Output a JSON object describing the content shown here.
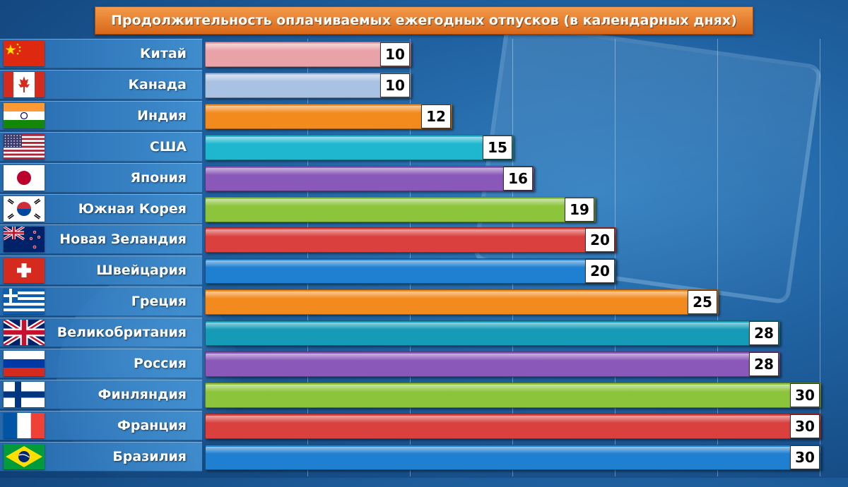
{
  "chart_data": {
    "type": "bar",
    "orientation": "horizontal",
    "title": "Продолжительность оплачиваемых ежегодных отпусков (в календарных днях)",
    "xlim": [
      0,
      30
    ],
    "grid": true,
    "categories": [
      "Китай",
      "Канада",
      "Индия",
      "США",
      "Япония",
      "Южная Корея",
      "Новая Зеландия",
      "Швейцария",
      "Греция",
      "Великобритания",
      "Россия",
      "Финляндия",
      "Франция",
      "Бразилия"
    ],
    "values": [
      10,
      10,
      12,
      15,
      16,
      19,
      20,
      20,
      25,
      28,
      28,
      30,
      30,
      30
    ],
    "value_labels": [
      "10",
      "10",
      "12",
      "15",
      "16",
      "19",
      "20",
      "20",
      "25",
      "28",
      "28",
      "30",
      "30",
      "30"
    ],
    "bar_colors": [
      "#e9a3a8",
      "#a9c1e3",
      "#f28a1e",
      "#1fb7cf",
      "#8a58b8",
      "#8cc43c",
      "#d9403e",
      "#1f7fd0",
      "#f28a1e",
      "#159ab7",
      "#8a58b8",
      "#8cc43c",
      "#d9403e",
      "#1f7fd0"
    ],
    "flags": [
      "china-flag-icon",
      "canada-flag-icon",
      "india-flag-icon",
      "usa-flag-icon",
      "japan-flag-icon",
      "south-korea-flag-icon",
      "new-zealand-flag-icon",
      "switzerland-flag-icon",
      "greece-flag-icon",
      "uk-flag-icon",
      "russia-flag-icon",
      "finland-flag-icon",
      "france-flag-icon",
      "brazil-flag-icon"
    ]
  },
  "colors": {
    "title_bg": "#e2771f",
    "background": "#1f5f9e"
  }
}
